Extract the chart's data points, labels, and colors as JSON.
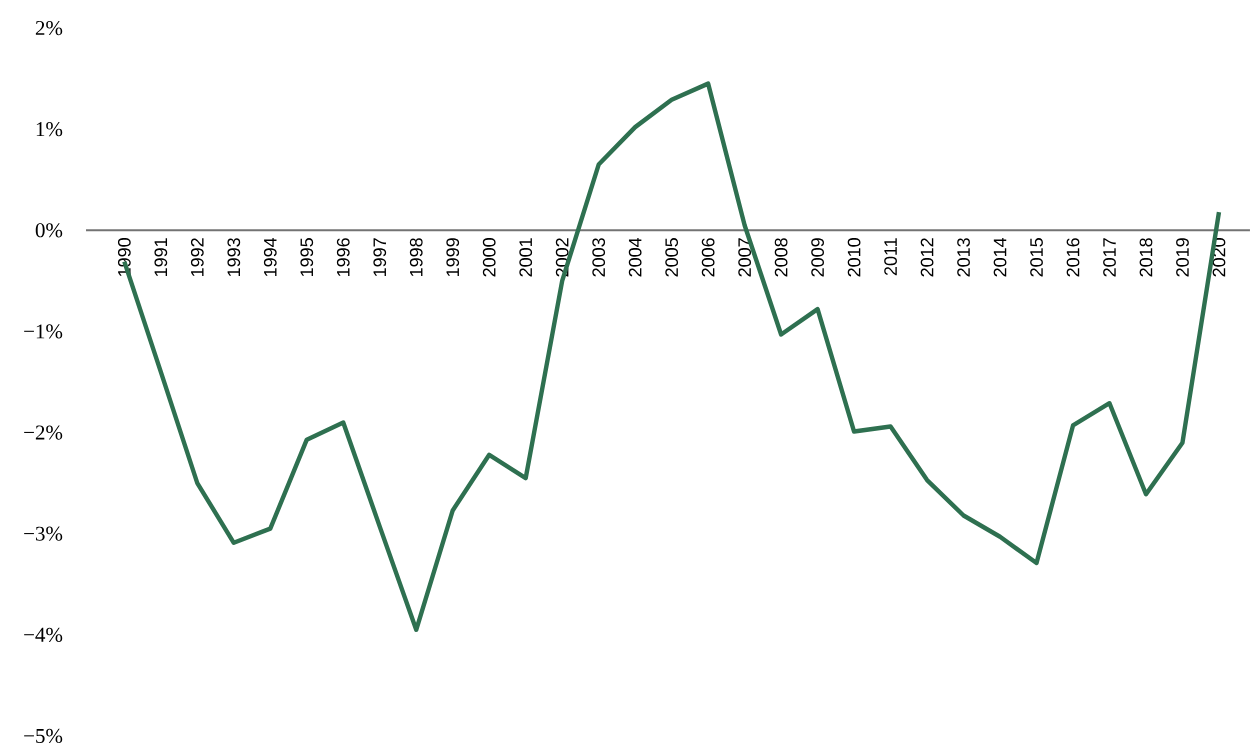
{
  "chart_data": {
    "type": "line",
    "categories": [
      "1990",
      "1991",
      "1992",
      "1993",
      "1994",
      "1995",
      "1996",
      "1997",
      "1998",
      "1999",
      "2000",
      "2001",
      "2002",
      "2003",
      "2004",
      "2005",
      "2006",
      "2007",
      "2008",
      "2009",
      "2010",
      "2011",
      "2012",
      "2013",
      "2014",
      "2015",
      "2016",
      "2017",
      "2018",
      "2019",
      "2020"
    ],
    "values": [
      -0.31,
      -1.4,
      -2.5,
      -3.09,
      -2.95,
      -2.07,
      -1.9,
      -2.93,
      -3.95,
      -2.77,
      -2.22,
      -2.45,
      -0.5,
      0.65,
      1.02,
      1.29,
      1.45,
      0.05,
      -1.03,
      -0.78,
      -1.99,
      -1.94,
      -2.47,
      -2.82,
      -3.03,
      -3.29,
      -1.93,
      -1.71,
      -2.61,
      -2.1,
      0.18
    ],
    "color": "#2e7050",
    "ylim": [
      -5,
      2
    ],
    "yticks": [
      {
        "value": 2,
        "label": "2%"
      },
      {
        "value": 1,
        "label": "1%"
      },
      {
        "value": 0,
        "label": "0%"
      },
      {
        "value": -1,
        "label": "−1%"
      },
      {
        "value": -2,
        "label": "−2%"
      },
      {
        "value": -3,
        "label": "−3%"
      },
      {
        "value": -4,
        "label": "−4%"
      },
      {
        "value": -5,
        "label": "−5%"
      }
    ]
  }
}
